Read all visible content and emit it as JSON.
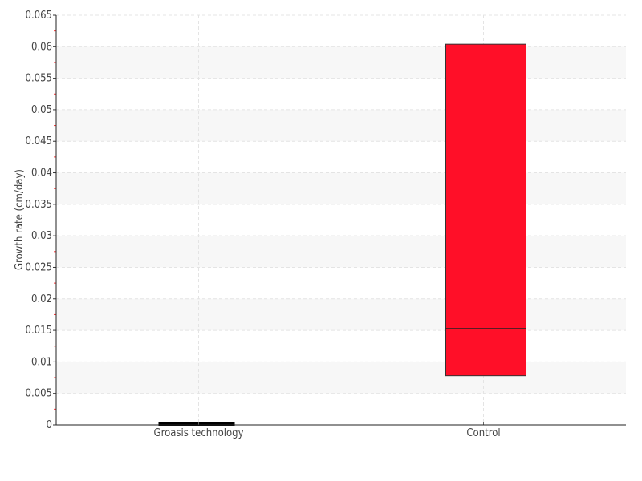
{
  "chart_data": {
    "type": "box",
    "title": "",
    "xlabel": "",
    "ylabel": "Growth rate (cm/day)",
    "ylim": [
      0,
      0.065
    ],
    "yticks": [
      "0",
      "0.005",
      "0.01",
      "0.015",
      "0.02",
      "0.025",
      "0.03",
      "0.035",
      "0.04",
      "0.045",
      "0.05",
      "0.055",
      "0.06",
      "0.065"
    ],
    "categories": [
      "Groasis technology",
      "Control"
    ],
    "boxes": [
      {
        "category": "Groasis technology",
        "q1": 0,
        "median": 0,
        "q3": 0
      },
      {
        "category": "Control",
        "q1": 0.0078,
        "median": 0.0153,
        "q3": 0.0604
      }
    ],
    "grid": true,
    "colors": {
      "box": "#ff0f28",
      "edge": "#333333",
      "band": "#f7f7f7",
      "minor_tick": "#ff3333"
    }
  }
}
